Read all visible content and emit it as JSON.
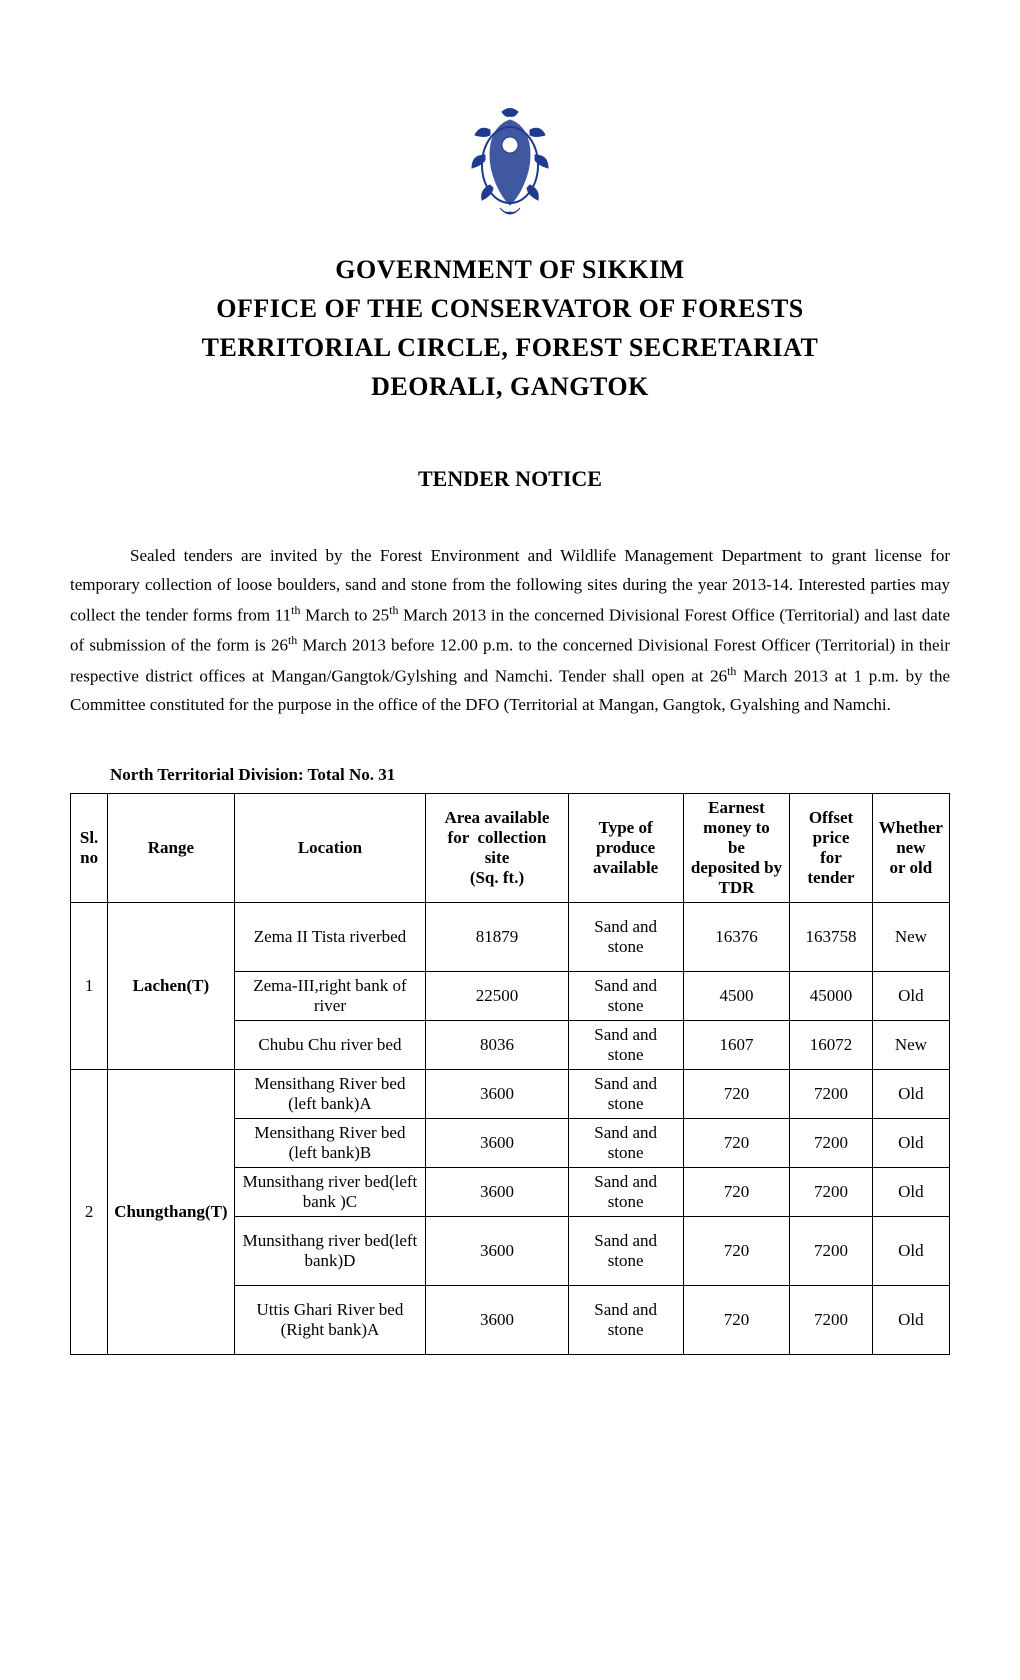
{
  "header": {
    "line1": "GOVERNMENT OF SIKKIM",
    "line2": "OFFICE OF THE CONSERVATOR OF FORESTS",
    "line3": "TERRITORIAL CIRCLE, FOREST SECRETARIAT",
    "line4": "DEORALI, GANGTOK"
  },
  "notice_title": "TENDER NOTICE",
  "body_html": "Sealed tenders are invited by the Forest Environment and Wildlife Management Department to grant license for temporary collection of loose boulders, sand and stone from the following sites during the year 2013-14. Interested parties may collect the tender forms from 11<sup>th</sup> March to 25<sup>th</sup> March 2013 in the concerned Divisional Forest Office (Territorial) and last date of submission of the form is 26<sup>th</sup> March 2013 before 12.00 p.m. to the concerned Divisional Forest Officer (Territorial) in their respective district offices at Mangan/Gangtok/Gylshing and Namchi. Tender shall open at 26<sup>th</sup> March 2013 at 1 p.m. by the Committee constituted for the purpose in the office of the DFO (Territorial at Mangan, Gangtok, Gyalshing and Namchi.",
  "division_title": "North Territorial Division: Total No. 31",
  "table": {
    "columns": {
      "sl": "Sl. no",
      "range": "Range",
      "location": "Location",
      "area": "Area available for  collection site\n(Sq. ft.)",
      "type": "Type of produce available",
      "earnest": "Earnest money to be\ndeposited by TDR",
      "offset": "Offset price for\ntender",
      "whether": "Whether new\nor old"
    },
    "groups": [
      {
        "sl": "1",
        "range": "Lachen(T)",
        "rows": [
          {
            "loc": "Zema II Tista riverbed",
            "area": "81879",
            "type": "Sand and stone",
            "earn": "16376",
            "off": "163758",
            "new": "New",
            "tall": true
          },
          {
            "loc": "Zema-III,right bank of river",
            "area": "22500",
            "type": "Sand and stone",
            "earn": "4500",
            "off": "45000",
            "new": "Old"
          },
          {
            "loc": "Chubu Chu river bed",
            "area": "8036",
            "type": "Sand and stone",
            "earn": "1607",
            "off": "16072",
            "new": "New"
          }
        ]
      },
      {
        "sl": "2",
        "range": "Chungthang(T)",
        "rows": [
          {
            "loc": "Mensithang River bed (left bank)A",
            "area": "3600",
            "type": "Sand and stone",
            "earn": "720",
            "off": "7200",
            "new": "Old"
          },
          {
            "loc": "Mensithang River bed (left bank)B",
            "area": "3600",
            "type": "Sand and stone",
            "earn": "720",
            "off": "7200",
            "new": "Old"
          },
          {
            "loc": "Munsithang river bed(left bank )C",
            "area": "3600",
            "type": "Sand and stone",
            "earn": "720",
            "off": "7200",
            "new": "Old"
          },
          {
            "loc": "Munsithang river bed(left bank)D",
            "area": "3600",
            "type": "Sand and stone",
            "earn": "720",
            "off": "7200",
            "new": "Old",
            "tall": true
          },
          {
            "loc": "Uttis Ghari River bed (Right bank)A",
            "area": "3600",
            "type": "Sand and stone",
            "earn": "720",
            "off": "7200",
            "new": "Old",
            "tall": true
          }
        ]
      }
    ]
  },
  "styling": {
    "page_bg": "#ffffff",
    "text_color": "#000000",
    "border_color": "#000000",
    "logo_color": "#1f3b8f",
    "header_fontsize": 26,
    "notice_fontsize": 22,
    "body_fontsize": 17,
    "table_fontsize": 17
  }
}
